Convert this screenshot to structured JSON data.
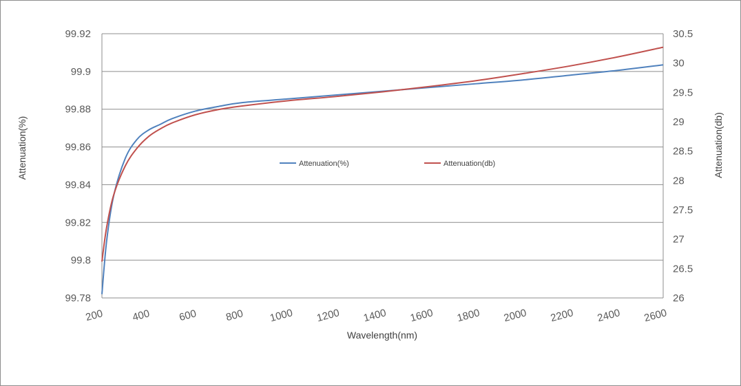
{
  "chart_data": {
    "type": "line",
    "title": "",
    "xlabel": "Wavelength(nm)",
    "ylabel_left": "Attenuation(%)",
    "ylabel_right": "Attenuation(db)",
    "xlim": [
      200,
      2600
    ],
    "ylim_left": [
      99.78,
      99.92
    ],
    "ylim_right": [
      26,
      30.5
    ],
    "x_ticks": [
      "200",
      "400",
      "600",
      "800",
      "1000",
      "1200",
      "1400",
      "1600",
      "1800",
      "2000",
      "2200",
      "2400",
      "2600"
    ],
    "y_left_ticks": [
      "99.78",
      "99.8",
      "99.82",
      "99.84",
      "99.86",
      "99.88",
      "99.9",
      "99.92"
    ],
    "y_right_ticks": [
      "26",
      "26.5",
      "27",
      "27.5",
      "28",
      "28.5",
      "29",
      "29.5",
      "30",
      "30.5"
    ],
    "grid": "horizontal",
    "legend_position": "center",
    "series": [
      {
        "name": "Attenuation(%)",
        "axis": "left",
        "color": "#4f81bd",
        "x": [
          200,
          220,
          250,
          300,
          350,
          400,
          450,
          500,
          600,
          700,
          800,
          1000,
          1200,
          1400,
          1600,
          1800,
          2000,
          2200,
          2400,
          2600
        ],
        "y": [
          99.782,
          99.81,
          99.834,
          99.854,
          99.864,
          99.869,
          99.872,
          99.875,
          99.879,
          99.8815,
          99.8835,
          99.8855,
          99.8875,
          99.8895,
          99.8915,
          99.8935,
          99.8955,
          99.898,
          99.9005,
          99.9035
        ]
      },
      {
        "name": "Attenuation(db)",
        "axis": "right",
        "color": "#c0504d",
        "x": [
          200,
          220,
          250,
          300,
          350,
          400,
          450,
          500,
          600,
          700,
          800,
          1000,
          1200,
          1400,
          1600,
          1800,
          2000,
          2200,
          2400,
          2600
        ],
        "y": [
          26.62,
          27.2,
          27.75,
          28.25,
          28.55,
          28.75,
          28.88,
          28.98,
          29.12,
          29.21,
          29.27,
          29.36,
          29.43,
          29.51,
          29.6,
          29.7,
          29.82,
          29.95,
          30.1,
          30.27
        ]
      }
    ]
  }
}
